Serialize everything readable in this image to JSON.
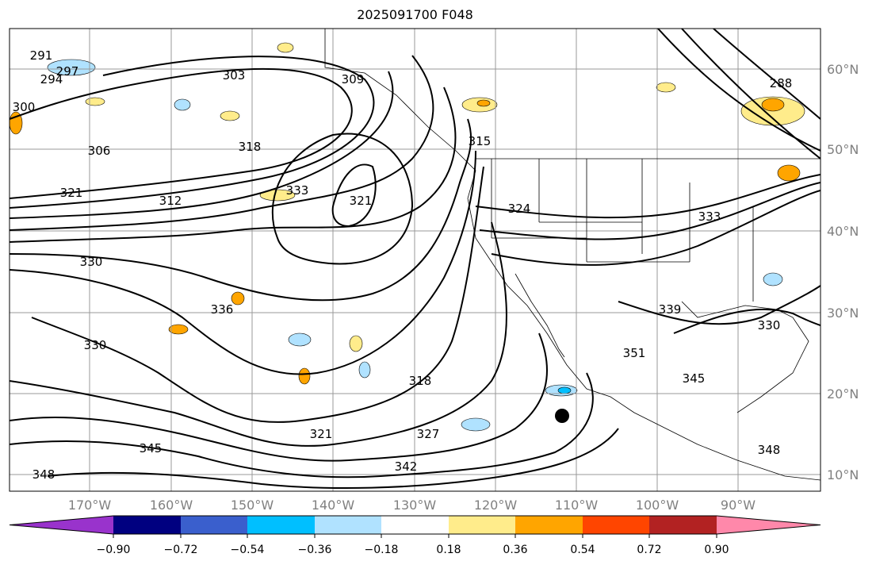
{
  "title": "2025091700 F048",
  "lon_labels": [
    "170°W",
    "160°W",
    "150°W",
    "140°W",
    "130°W",
    "120°W",
    "110°W",
    "100°W",
    "90°W"
  ],
  "lat_labels": [
    "60°N",
    "50°N",
    "40°N",
    "30°N",
    "20°N",
    "10°N"
  ],
  "contour_labels": [
    "291",
    "294",
    "297",
    "300",
    "303",
    "306",
    "309",
    "315",
    "312",
    "318",
    "321",
    "324",
    "327",
    "330",
    "333",
    "336",
    "339",
    "342",
    "345",
    "348",
    "351",
    "288"
  ],
  "colorbar": {
    "ticks": [
      "−0.90",
      "−0.72",
      "−0.54",
      "−0.36",
      "−0.18",
      "0.18",
      "0.36",
      "0.54",
      "0.72",
      "0.90"
    ],
    "colors": [
      "#9933cc",
      "#000080",
      "#3a5fcd",
      "#00bfff",
      "#b0e2ff",
      "#ffffff",
      "#ffec8b",
      "#ffa500",
      "#ff4500",
      "#b22222",
      "#ff88aa"
    ]
  },
  "marker": "storm-center-dot"
}
